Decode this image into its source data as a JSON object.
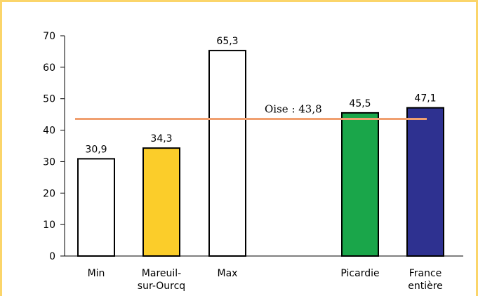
{
  "chart_data": {
    "type": "bar",
    "title": "",
    "xlabel": "",
    "ylabel": "",
    "ylim": [
      0,
      70
    ],
    "yticks": [
      "0",
      "10",
      "20",
      "30",
      "40",
      "50",
      "60",
      "70"
    ],
    "categories": [
      {
        "lines": [
          "Min"
        ]
      },
      {
        "lines": [
          "Mareuil-",
          "sur-Ourcq"
        ]
      },
      {
        "lines": [
          "Max"
        ]
      },
      {
        "lines": [
          "Picardie"
        ]
      },
      {
        "lines": [
          "France",
          "entière"
        ]
      }
    ],
    "values": [
      30.9,
      34.3,
      65.3,
      45.5,
      47.1
    ],
    "value_labels": [
      "30,9",
      "34,3",
      "65,3",
      "45,5",
      "47,1"
    ],
    "bar_colors": [
      "#ffffff",
      "#fbcd2a",
      "#ffffff",
      "#1aa64a",
      "#2e3190"
    ],
    "reference_line": {
      "value": 43.8,
      "label": "Oise : 43,8",
      "color": "#f0a070"
    },
    "grid": false,
    "legend": "none"
  }
}
